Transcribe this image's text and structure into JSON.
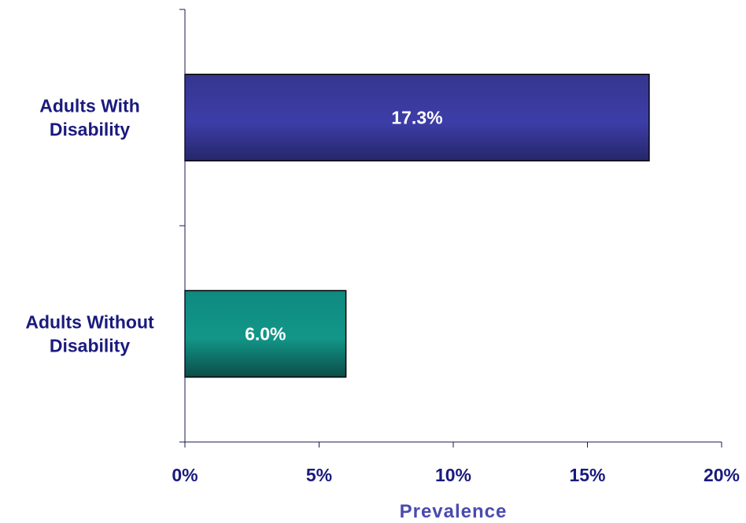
{
  "chart_data": {
    "type": "bar",
    "orientation": "horizontal",
    "categories": [
      [
        "Adults With",
        "Disability"
      ],
      [
        "Adults Without",
        "Disability"
      ]
    ],
    "values": [
      17.3,
      6.0
    ],
    "data_labels": [
      "17.3%",
      "6.0%"
    ],
    "xlabel": "Prevalence",
    "ylabel": "",
    "xlim": [
      0,
      20
    ],
    "x_ticks": [
      0,
      5,
      10,
      15,
      20
    ],
    "x_tick_labels": [
      "0%",
      "5%",
      "10%",
      "15%",
      "20%"
    ],
    "grid": false,
    "legend": "none"
  },
  "colors": {
    "text": "#1a1a7e",
    "axis_title": "#4a4ab0",
    "axis_line": "#1a1a50",
    "bar_edge": "#000000",
    "data_label": "#ffffff",
    "bar_gradients": [
      [
        "#35358f",
        "#3d3da8",
        "#26266a"
      ],
      [
        "#0f8a80",
        "#129688",
        "#0b4d47"
      ]
    ]
  }
}
